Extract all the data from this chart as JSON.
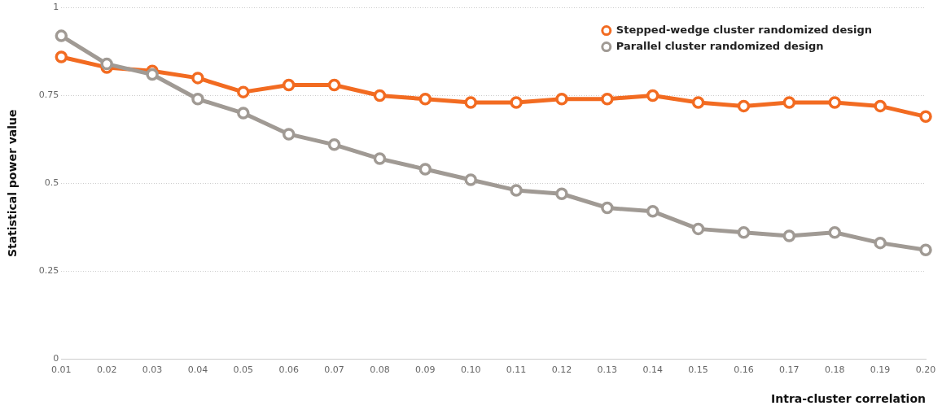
{
  "chart_data": {
    "type": "line",
    "xlabel": "Intra-cluster correlation",
    "ylabel": "Statistical power value",
    "categories": [
      "0.01",
      "0.02",
      "0.03",
      "0.04",
      "0.05",
      "0.06",
      "0.07",
      "0.08",
      "0.09",
      "0.10",
      "0.11",
      "0.12",
      "0.13",
      "0.14",
      "0.15",
      "0.16",
      "0.17",
      "0.18",
      "0.19",
      "0.20"
    ],
    "series": [
      {
        "name": "Stepped-wedge cluster randomized design",
        "color": "#f26b21",
        "values": [
          0.86,
          0.83,
          0.82,
          0.8,
          0.76,
          0.78,
          0.78,
          0.75,
          0.74,
          0.73,
          0.73,
          0.74,
          0.74,
          0.75,
          0.73,
          0.72,
          0.73,
          0.73,
          0.72,
          0.69
        ]
      },
      {
        "name": "Parallel cluster randomized design",
        "color": "#a09a94",
        "values": [
          0.92,
          0.84,
          0.81,
          0.74,
          0.7,
          0.64,
          0.61,
          0.57,
          0.54,
          0.51,
          0.48,
          0.47,
          0.43,
          0.42,
          0.37,
          0.36,
          0.35,
          0.36,
          0.33,
          0.31
        ]
      }
    ],
    "ylim": [
      0,
      1
    ],
    "yticks": [
      0,
      {
        "value": 0.25,
        "label": "0.25"
      },
      {
        "value": 0.5,
        "label": "0.5"
      },
      {
        "value": 0.75,
        "label": "0.75"
      },
      1
    ],
    "grid": "y",
    "legend": "top right",
    "marker": "circle",
    "line_style": "solid"
  }
}
